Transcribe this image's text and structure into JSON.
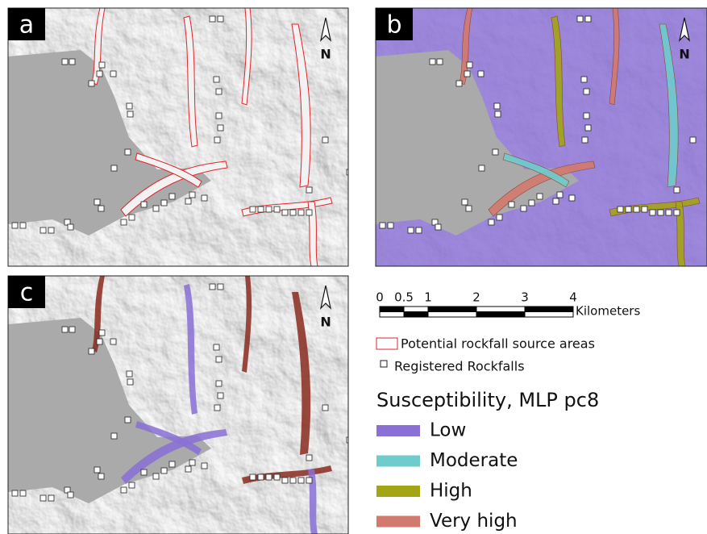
{
  "panels": [
    {
      "label": "a"
    },
    {
      "label": "b"
    },
    {
      "label": "c"
    }
  ],
  "north_label": "N",
  "scale_bar": {
    "ticks": [
      0,
      0.5,
      1,
      2,
      3,
      4
    ],
    "unit": "Kilometers"
  },
  "legend": {
    "source_areas": "Potential rockfall source areas",
    "rockfalls": "Registered Rockfalls",
    "title": "Susceptibility, MLP pc8",
    "classes": [
      {
        "name": "Low",
        "color": "#8a70d6"
      },
      {
        "name": "Moderate",
        "color": "#6ecccc"
      },
      {
        "name": "High",
        "color": "#a2a514"
      },
      {
        "name": "Very high",
        "color": "#d27a6e"
      }
    ]
  }
}
